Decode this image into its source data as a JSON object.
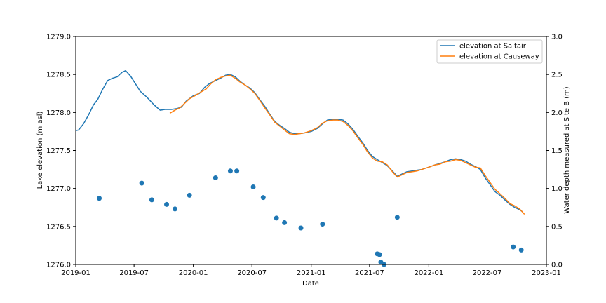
{
  "chart_data": {
    "type": "line",
    "xlabel": "Date",
    "ylabel_left": "Lake elevation (m asl)",
    "ylabel_right": "Water depth measured at Site B (m)",
    "xlim": [
      "2019-01-01",
      "2023-01-01"
    ],
    "ylim_left": [
      1276.0,
      1279.0
    ],
    "ylim_right": [
      0.0,
      3.0
    ],
    "grid": false,
    "legend_position": "top-right",
    "x_ticks": [
      {
        "date": "2019-01-01",
        "label": "2019-01"
      },
      {
        "date": "2019-07-01",
        "label": "2019-07"
      },
      {
        "date": "2020-01-01",
        "label": "2020-01"
      },
      {
        "date": "2020-07-01",
        "label": "2020-07"
      },
      {
        "date": "2021-01-01",
        "label": "2021-01"
      },
      {
        "date": "2021-07-01",
        "label": "2021-07"
      },
      {
        "date": "2022-01-01",
        "label": "2022-01"
      },
      {
        "date": "2022-07-01",
        "label": "2022-07"
      },
      {
        "date": "2023-01-01",
        "label": "2023-01"
      }
    ],
    "y_ticks_left": [
      "1276.0",
      "1276.5",
      "1277.0",
      "1277.5",
      "1278.0",
      "1278.5",
      "1279.0"
    ],
    "y_ticks_right": [
      "0.0",
      "0.5",
      "1.0",
      "1.5",
      "2.0",
      "2.5",
      "3.0"
    ],
    "series": [
      {
        "name": "elevation at Saltair",
        "color": "#1f77b4",
        "axis": "left",
        "points": [
          [
            "2019-01-01",
            1277.76
          ],
          [
            "2019-01-10",
            1277.77
          ],
          [
            "2019-01-25",
            1277.85
          ],
          [
            "2019-02-10",
            1277.97
          ],
          [
            "2019-02-25",
            1278.1
          ],
          [
            "2019-03-10",
            1278.17
          ],
          [
            "2019-03-25",
            1278.3
          ],
          [
            "2019-04-10",
            1278.42
          ],
          [
            "2019-04-25",
            1278.45
          ],
          [
            "2019-05-10",
            1278.47
          ],
          [
            "2019-05-25",
            1278.53
          ],
          [
            "2019-06-05",
            1278.55
          ],
          [
            "2019-06-20",
            1278.48
          ],
          [
            "2019-07-05",
            1278.38
          ],
          [
            "2019-07-20",
            1278.28
          ],
          [
            "2019-08-10",
            1278.2
          ],
          [
            "2019-09-01",
            1278.1
          ],
          [
            "2019-09-20",
            1278.03
          ],
          [
            "2019-10-05",
            1278.04
          ],
          [
            "2019-10-25",
            1278.04
          ],
          [
            "2019-11-10",
            1278.05
          ],
          [
            "2019-11-25",
            1278.07
          ],
          [
            "2019-12-10",
            1278.15
          ],
          [
            "2020-01-01",
            1278.22
          ],
          [
            "2020-01-20",
            1278.25
          ],
          [
            "2020-02-05",
            1278.33
          ],
          [
            "2020-02-20",
            1278.38
          ],
          [
            "2020-03-10",
            1278.42
          ],
          [
            "2020-03-25",
            1278.45
          ],
          [
            "2020-04-10",
            1278.49
          ],
          [
            "2020-04-25",
            1278.5
          ],
          [
            "2020-05-10",
            1278.47
          ],
          [
            "2020-05-25",
            1278.41
          ],
          [
            "2020-06-10",
            1278.36
          ],
          [
            "2020-06-25",
            1278.32
          ],
          [
            "2020-07-10",
            1278.26
          ],
          [
            "2020-07-25",
            1278.17
          ],
          [
            "2020-08-10",
            1278.08
          ],
          [
            "2020-08-25",
            1277.98
          ],
          [
            "2020-09-10",
            1277.88
          ],
          [
            "2020-09-25",
            1277.83
          ],
          [
            "2020-10-10",
            1277.79
          ],
          [
            "2020-10-25",
            1277.74
          ],
          [
            "2020-11-10",
            1277.72
          ],
          [
            "2020-11-25",
            1277.72
          ],
          [
            "2020-12-10",
            1277.73
          ],
          [
            "2021-01-01",
            1277.75
          ],
          [
            "2021-01-20",
            1277.79
          ],
          [
            "2021-02-05",
            1277.85
          ],
          [
            "2021-02-20",
            1277.9
          ],
          [
            "2021-03-10",
            1277.91
          ],
          [
            "2021-03-25",
            1277.91
          ],
          [
            "2021-04-10",
            1277.9
          ],
          [
            "2021-04-25",
            1277.85
          ],
          [
            "2021-05-10",
            1277.78
          ],
          [
            "2021-05-25",
            1277.69
          ],
          [
            "2021-06-10",
            1277.6
          ],
          [
            "2021-06-25",
            1277.5
          ],
          [
            "2021-07-10",
            1277.42
          ],
          [
            "2021-07-25",
            1277.38
          ],
          [
            "2021-08-10",
            1277.34
          ],
          [
            "2021-08-25",
            1277.3
          ],
          [
            "2021-09-10",
            1277.23
          ],
          [
            "2021-09-25",
            1277.16
          ],
          [
            "2021-10-10",
            1277.19
          ],
          [
            "2021-10-25",
            1277.22
          ],
          [
            "2021-11-10",
            1277.23
          ],
          [
            "2021-11-25",
            1277.24
          ],
          [
            "2021-12-10",
            1277.25
          ],
          [
            "2022-01-01",
            1277.28
          ],
          [
            "2022-01-20",
            1277.31
          ],
          [
            "2022-02-05",
            1277.33
          ],
          [
            "2022-02-20",
            1277.35
          ],
          [
            "2022-03-10",
            1277.38
          ],
          [
            "2022-03-25",
            1277.39
          ],
          [
            "2022-04-10",
            1277.38
          ],
          [
            "2022-04-25",
            1277.36
          ],
          [
            "2022-05-10",
            1277.32
          ],
          [
            "2022-05-25",
            1277.29
          ],
          [
            "2022-06-10",
            1277.25
          ],
          [
            "2022-06-25",
            1277.14
          ],
          [
            "2022-07-10",
            1277.05
          ],
          [
            "2022-07-25",
            1276.96
          ],
          [
            "2022-08-10",
            1276.91
          ],
          [
            "2022-08-25",
            1276.85
          ],
          [
            "2022-09-10",
            1276.79
          ],
          [
            "2022-09-25",
            1276.75
          ],
          [
            "2022-10-10",
            1276.72
          ],
          [
            "2022-10-20",
            1276.69
          ]
        ]
      },
      {
        "name": "elevation at Causeway",
        "color": "#ff7f0e",
        "axis": "left",
        "points": [
          [
            "2019-10-20",
            1277.99
          ],
          [
            "2019-11-05",
            1278.03
          ],
          [
            "2019-11-20",
            1278.06
          ],
          [
            "2019-12-05",
            1278.12
          ],
          [
            "2019-12-20",
            1278.18
          ],
          [
            "2020-01-10",
            1278.23
          ],
          [
            "2020-01-25",
            1278.27
          ],
          [
            "2020-02-10",
            1278.31
          ],
          [
            "2020-02-25",
            1278.38
          ],
          [
            "2020-03-10",
            1278.43
          ],
          [
            "2020-03-25",
            1278.46
          ],
          [
            "2020-04-10",
            1278.48
          ],
          [
            "2020-04-25",
            1278.49
          ],
          [
            "2020-05-10",
            1278.45
          ],
          [
            "2020-05-25",
            1278.4
          ],
          [
            "2020-06-10",
            1278.36
          ],
          [
            "2020-06-25",
            1278.31
          ],
          [
            "2020-07-10",
            1278.25
          ],
          [
            "2020-07-25",
            1278.16
          ],
          [
            "2020-08-10",
            1278.06
          ],
          [
            "2020-08-25",
            1277.97
          ],
          [
            "2020-09-10",
            1277.87
          ],
          [
            "2020-09-25",
            1277.82
          ],
          [
            "2020-10-10",
            1277.77
          ],
          [
            "2020-10-25",
            1277.72
          ],
          [
            "2020-11-10",
            1277.71
          ],
          [
            "2020-11-25",
            1277.72
          ],
          [
            "2020-12-10",
            1277.73
          ],
          [
            "2021-01-01",
            1277.76
          ],
          [
            "2021-01-20",
            1277.8
          ],
          [
            "2021-02-05",
            1277.86
          ],
          [
            "2021-02-20",
            1277.89
          ],
          [
            "2021-03-10",
            1277.9
          ],
          [
            "2021-03-25",
            1277.9
          ],
          [
            "2021-04-10",
            1277.88
          ],
          [
            "2021-04-25",
            1277.83
          ],
          [
            "2021-05-10",
            1277.76
          ],
          [
            "2021-05-25",
            1277.67
          ],
          [
            "2021-06-10",
            1277.58
          ],
          [
            "2021-06-25",
            1277.48
          ],
          [
            "2021-07-10",
            1277.4
          ],
          [
            "2021-07-25",
            1277.36
          ],
          [
            "2021-08-10",
            1277.35
          ],
          [
            "2021-08-25",
            1277.31
          ],
          [
            "2021-09-10",
            1277.22
          ],
          [
            "2021-09-25",
            1277.15
          ],
          [
            "2021-10-10",
            1277.18
          ],
          [
            "2021-10-25",
            1277.21
          ],
          [
            "2021-11-10",
            1277.22
          ],
          [
            "2021-11-25",
            1277.23
          ],
          [
            "2021-12-10",
            1277.25
          ],
          [
            "2022-01-01",
            1277.28
          ],
          [
            "2022-01-20",
            1277.31
          ],
          [
            "2022-02-05",
            1277.32
          ],
          [
            "2022-02-20",
            1277.35
          ],
          [
            "2022-03-10",
            1277.36
          ],
          [
            "2022-03-25",
            1277.38
          ],
          [
            "2022-04-10",
            1277.37
          ],
          [
            "2022-04-25",
            1277.34
          ],
          [
            "2022-05-10",
            1277.31
          ],
          [
            "2022-05-25",
            1277.28
          ],
          [
            "2022-06-10",
            1277.27
          ],
          [
            "2022-06-25",
            1277.17
          ],
          [
            "2022-07-10",
            1277.08
          ],
          [
            "2022-07-25",
            1276.99
          ],
          [
            "2022-08-10",
            1276.93
          ],
          [
            "2022-08-25",
            1276.87
          ],
          [
            "2022-09-10",
            1276.8
          ],
          [
            "2022-09-25",
            1276.77
          ],
          [
            "2022-10-10",
            1276.73
          ],
          [
            "2022-10-25",
            1276.66
          ]
        ]
      }
    ],
    "scatter": {
      "axis": "right",
      "color": "#1f77b4",
      "points": [
        [
          "2019-03-15",
          0.87
        ],
        [
          "2019-07-25",
          1.07
        ],
        [
          "2019-08-25",
          0.85
        ],
        [
          "2019-10-10",
          0.79
        ],
        [
          "2019-11-05",
          0.73
        ],
        [
          "2019-12-20",
          0.91
        ],
        [
          "2020-03-10",
          1.14
        ],
        [
          "2020-04-25",
          1.23
        ],
        [
          "2020-05-15",
          1.23
        ],
        [
          "2020-07-05",
          1.02
        ],
        [
          "2020-08-05",
          0.88
        ],
        [
          "2020-09-15",
          0.61
        ],
        [
          "2020-10-10",
          0.55
        ],
        [
          "2020-11-30",
          0.48
        ],
        [
          "2021-02-05",
          0.53
        ],
        [
          "2021-07-25",
          0.14
        ],
        [
          "2021-08-01",
          0.13
        ],
        [
          "2021-08-05",
          0.03
        ],
        [
          "2021-08-15",
          0.0
        ],
        [
          "2021-09-25",
          0.62
        ],
        [
          "2022-09-20",
          0.23
        ],
        [
          "2022-10-15",
          0.19
        ]
      ]
    }
  }
}
